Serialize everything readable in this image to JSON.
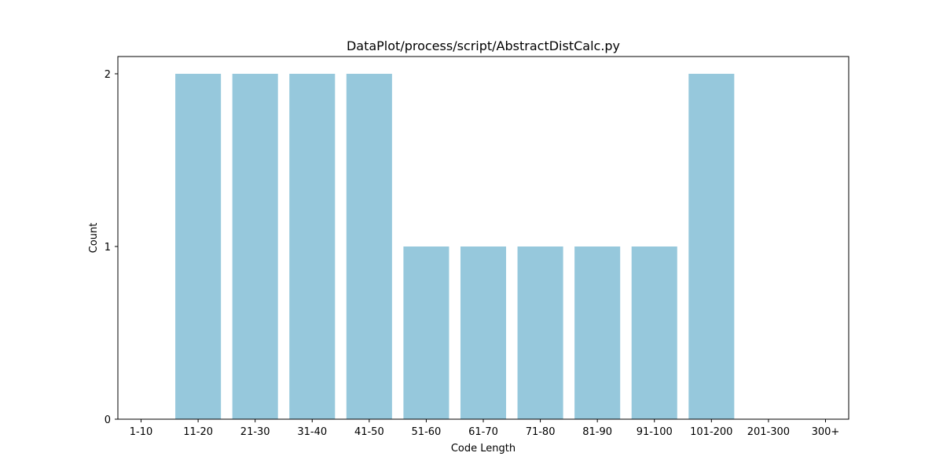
{
  "chart_data": {
    "type": "bar",
    "title": "DataPlot/process/script/AbstractDistCalc.py",
    "xlabel": "Code Length",
    "ylabel": "Count",
    "categories": [
      "1-10",
      "11-20",
      "21-30",
      "31-40",
      "41-50",
      "51-60",
      "61-70",
      "71-80",
      "81-90",
      "91-100",
      "101-200",
      "201-300",
      "300+"
    ],
    "values": [
      0,
      2,
      2,
      2,
      2,
      1,
      1,
      1,
      1,
      1,
      2,
      0,
      0
    ],
    "ylim": [
      0,
      2.1
    ],
    "yticks": [
      0,
      1,
      2
    ],
    "bar_color": "#96c8dc",
    "grid": false,
    "legend": "none"
  }
}
